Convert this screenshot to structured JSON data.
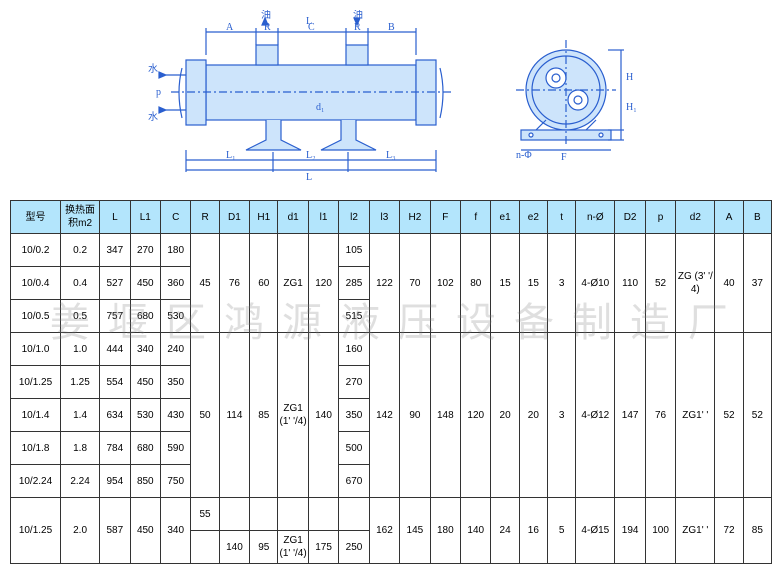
{
  "diagram": {
    "stroke": "#2a5fcf",
    "fill": "#cde4fb",
    "labels": {
      "oil": "油",
      "water": "水",
      "top_dims": [
        "A",
        "R",
        "C",
        "R",
        "B"
      ],
      "internal": [
        "L",
        "L",
        "d₁",
        "n-Φ"
      ],
      "bottom": [
        "L₁",
        "L₂",
        "L₃"
      ],
      "left_p": "p",
      "right": [
        "H",
        "H₁",
        "F"
      ]
    }
  },
  "watermark": "姜堰区鸿源液压设备制造厂",
  "headers": [
    "型号",
    "换热面积m2",
    "L",
    "L1",
    "C",
    "R",
    "D1",
    "H1",
    "d1",
    "l1",
    "l2",
    "l3",
    "H2",
    "F",
    "f",
    "e1",
    "e2",
    "t",
    "n-Ø",
    "D2",
    "p",
    "d2",
    "A",
    "B"
  ],
  "group1": {
    "rows": [
      {
        "model": "10/0.2",
        "area": "0.2",
        "L": "347",
        "L1": "270",
        "C": "180",
        "l2": "105"
      },
      {
        "model": "10/0.4",
        "area": "0.4",
        "L": "527",
        "L1": "450",
        "C": "360",
        "l2": "285"
      },
      {
        "model": "10/0.5",
        "area": "0.5",
        "L": "757",
        "L1": "680",
        "C": "530",
        "l2": "515"
      }
    ],
    "shared": {
      "R": "45",
      "D1": "76",
      "H1": "60",
      "d1": "ZG1",
      "l1": "120",
      "l3": "122",
      "H2": "70",
      "F": "102",
      "f": "80",
      "e1": "15",
      "e2": "15",
      "t": "3",
      "nphi": "4-Ø10",
      "D2": "110",
      "p": "52",
      "d2": "ZG (3' '/4)",
      "A": "40",
      "B": "37"
    }
  },
  "group2": {
    "rows": [
      {
        "model": "10/1.0",
        "area": "1.0",
        "L": "444",
        "L1": "340",
        "C": "240",
        "l2": "160"
      },
      {
        "model": "10/1.25",
        "area": "1.25",
        "L": "554",
        "L1": "450",
        "C": "350",
        "l2": "270"
      },
      {
        "model": "10/1.4",
        "area": "1.4",
        "L": "634",
        "L1": "530",
        "C": "430",
        "l2": "350"
      },
      {
        "model": "10/1.8",
        "area": "1.8",
        "L": "784",
        "L1": "680",
        "C": "590",
        "l2": "500"
      },
      {
        "model": "10/2.24",
        "area": "2.24",
        "L": "954",
        "L1": "850",
        "C": "750",
        "l2": "670"
      }
    ],
    "shared": {
      "R": "50",
      "D1": "114",
      "H1": "85",
      "d1": "ZG1 (1' '/4)",
      "l1": "140",
      "l3": "142",
      "H2": "90",
      "F": "148",
      "f": "120",
      "e1": "20",
      "e2": "20",
      "t": "3",
      "nphi": "4-Ø12",
      "D2": "147",
      "p": "76",
      "d2": "ZG1' '",
      "A": "52",
      "B": "52"
    }
  },
  "group3": {
    "rows": [
      {
        "model": "10/1.25",
        "area": "2.0",
        "L": "587",
        "L1": "450",
        "C": "340",
        "R": "55",
        "l2": "250"
      }
    ],
    "shared": {
      "D1": "140",
      "H1": "95",
      "d1": "ZG1 (1' '/4)",
      "l1": "175",
      "l3": "162",
      "H2": "145",
      "F": "180",
      "f": "140",
      "e1": "24",
      "e2": "16",
      "t": "5",
      "nphi": "4-Ø15",
      "D2": "194",
      "p": "100",
      "d2": "ZG1' '",
      "A": "72",
      "B": "85"
    }
  }
}
